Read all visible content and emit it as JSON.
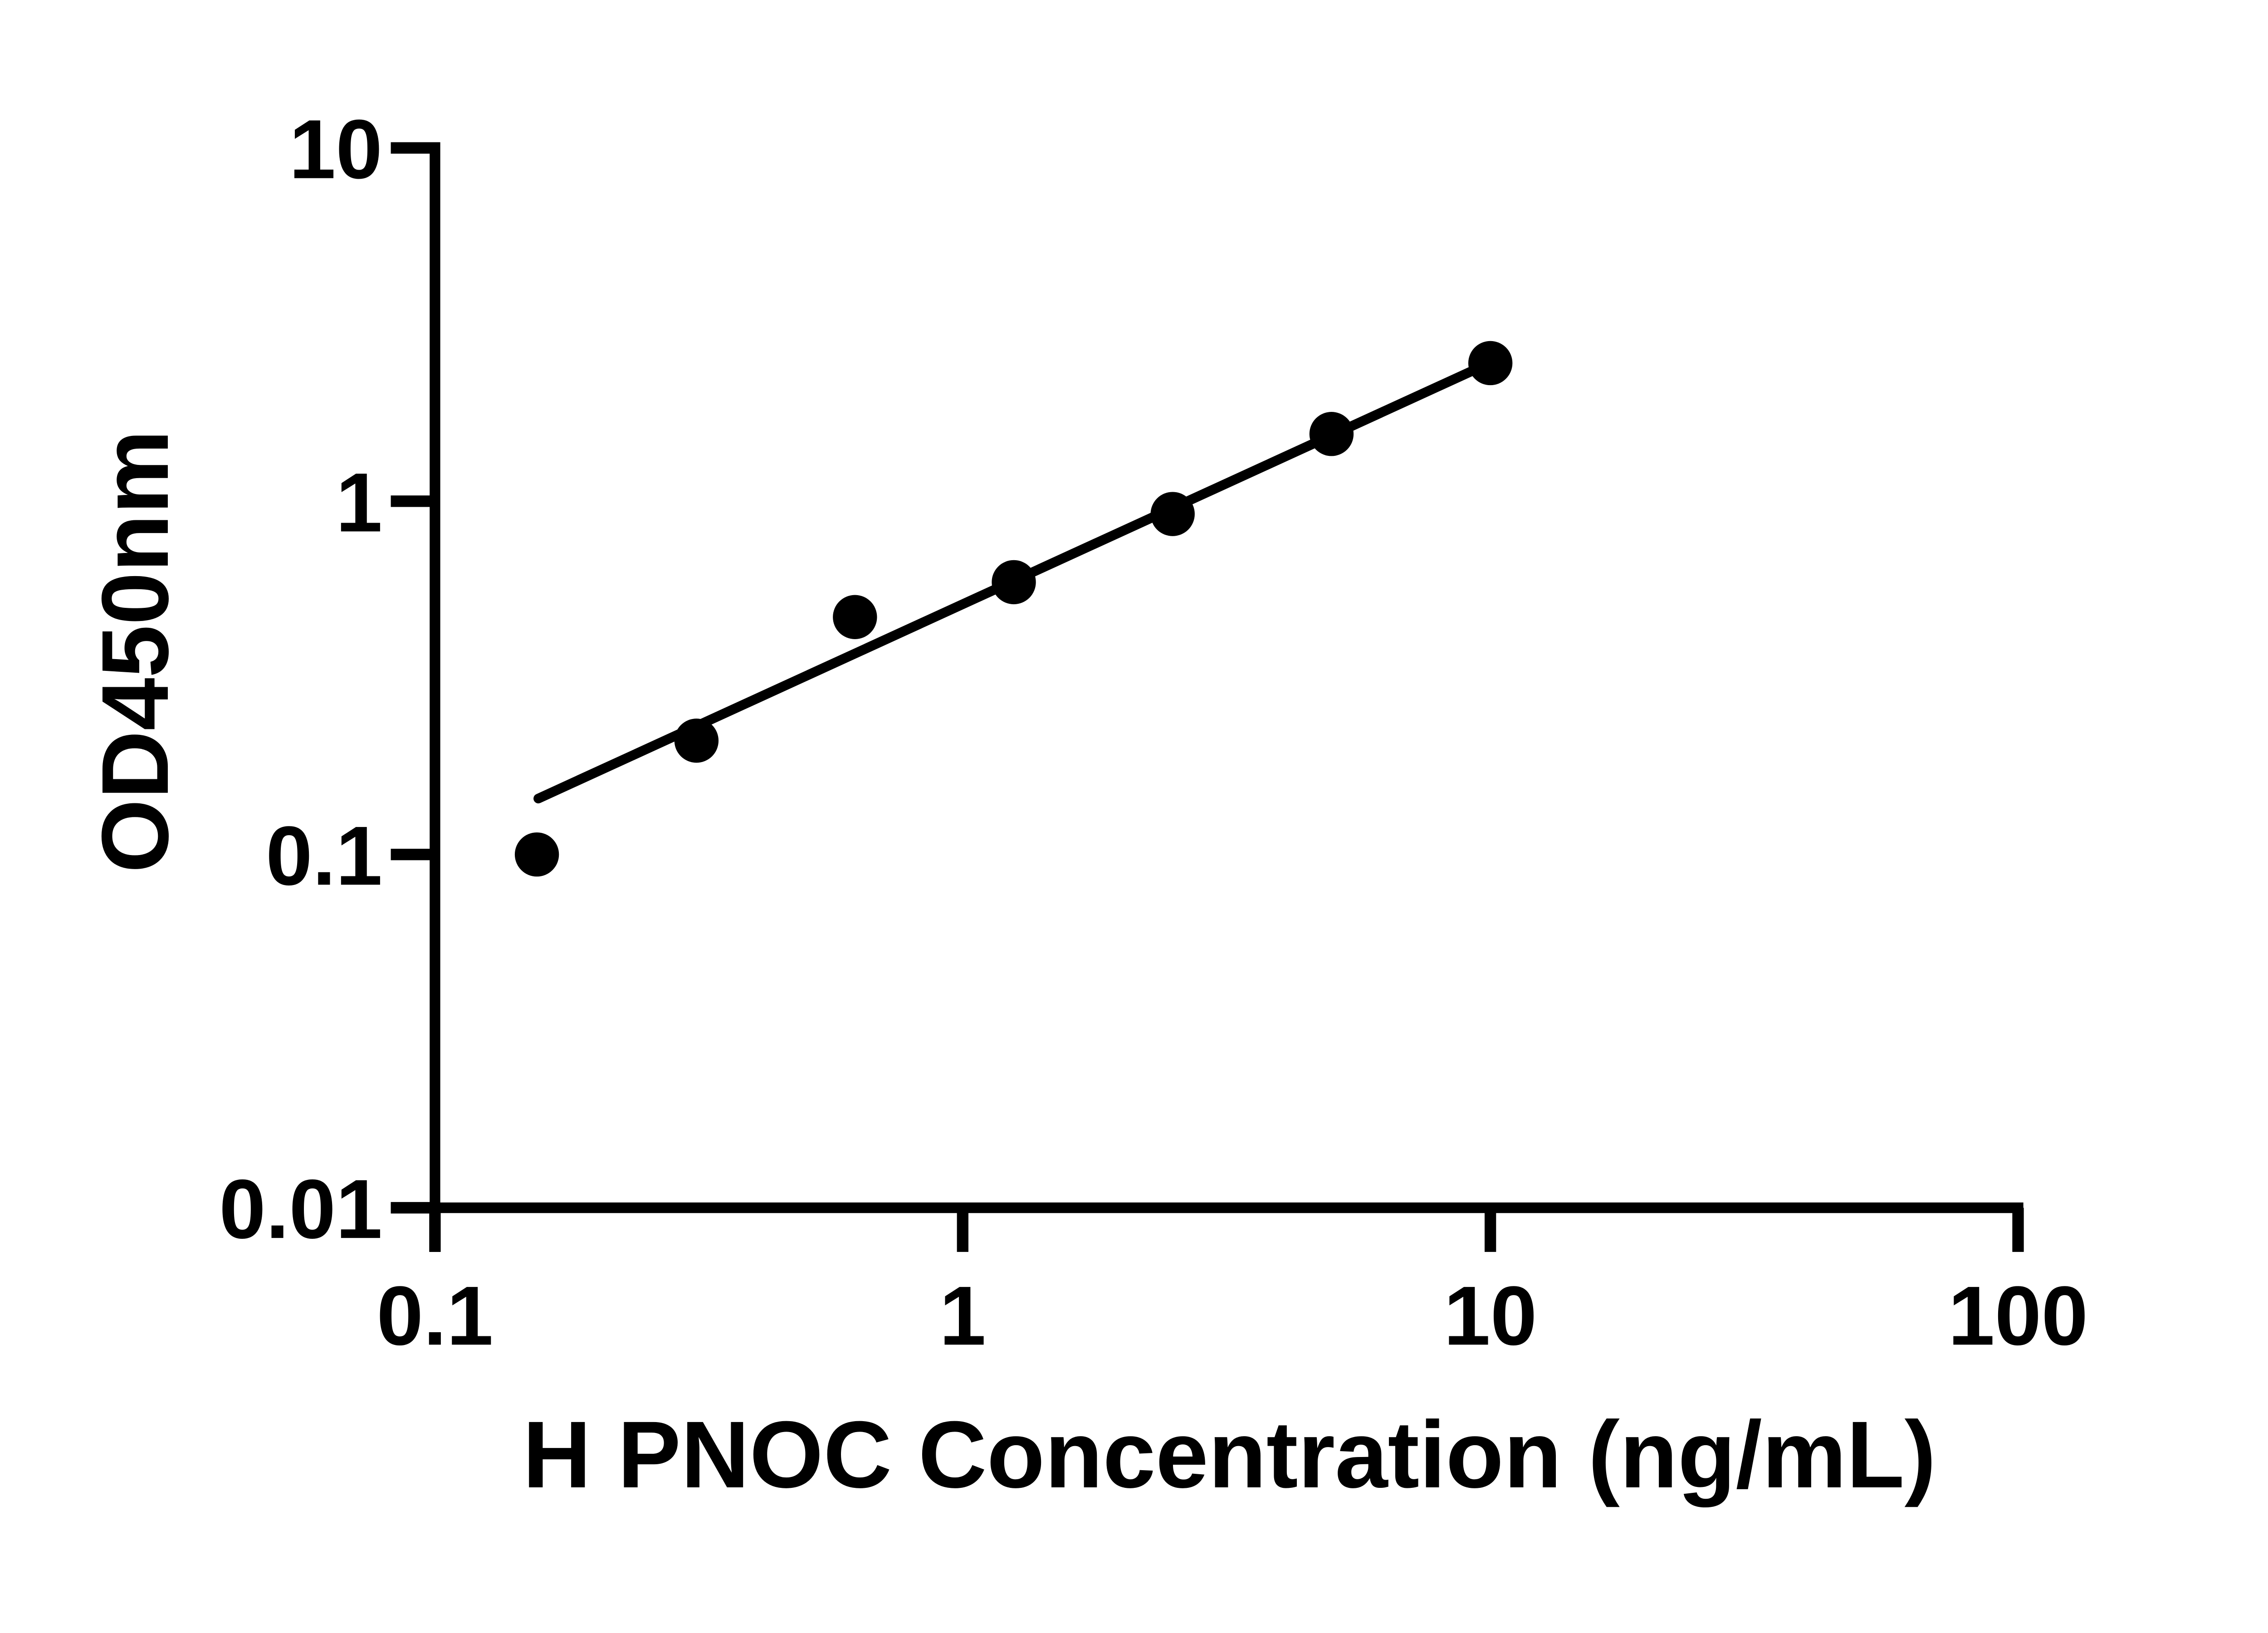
{
  "chart_data": {
    "type": "scatter",
    "title": "",
    "xlabel": "H PNOC Concentration (ng/mL)",
    "ylabel": "OD450nm",
    "x_scale": "log",
    "y_scale": "log",
    "xlim": [
      0.1,
      100
    ],
    "ylim": [
      0.01,
      10
    ],
    "grid": false,
    "legend": "none",
    "x_ticks": [
      {
        "value": 0.1,
        "label": "0.1"
      },
      {
        "value": 1,
        "label": "1"
      },
      {
        "value": 10,
        "label": "10"
      },
      {
        "value": 100,
        "label": "100"
      }
    ],
    "y_ticks": [
      {
        "value": 0.01,
        "label": "0.01"
      },
      {
        "value": 0.1,
        "label": "0.1"
      },
      {
        "value": 1,
        "label": "1"
      },
      {
        "value": 10,
        "label": "10"
      }
    ],
    "series": [
      {
        "name": "standard-curve-points",
        "marker": "filled-circle",
        "points": [
          {
            "x": 0.156,
            "y": 0.1
          },
          {
            "x": 0.313,
            "y": 0.21
          },
          {
            "x": 0.625,
            "y": 0.47
          },
          {
            "x": 1.25,
            "y": 0.59
          },
          {
            "x": 2.5,
            "y": 0.92
          },
          {
            "x": 5,
            "y": 1.55
          },
          {
            "x": 10,
            "y": 2.46
          }
        ]
      }
    ],
    "trend_line": {
      "x1": 0.157,
      "y1": 0.144,
      "x2": 9.95,
      "y2": 2.46
    },
    "colors": {
      "marker": "#000000",
      "line": "#000000",
      "axis": "#000000",
      "text": "#000000",
      "background": "#ffffff"
    }
  }
}
